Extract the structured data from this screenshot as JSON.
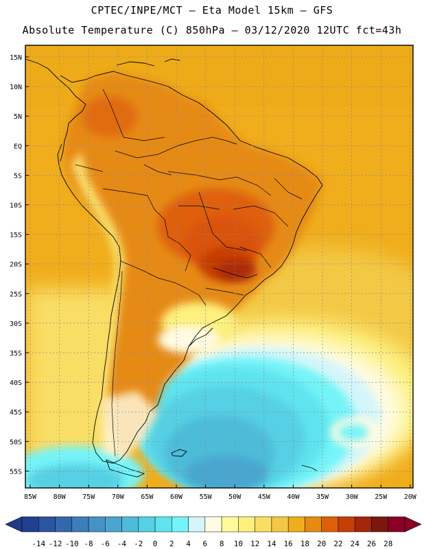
{
  "header": {
    "line1": "CPTEC/INPE/MCT –  Eta Model 15km – GFS",
    "line2": "Absolute Temperature (C) 850hPa – 03/12/2020 12UTC fct=43h"
  },
  "map": {
    "lat_labels": [
      "15N",
      "10N",
      "5N",
      "EQ",
      "5S",
      "10S",
      "15S",
      "20S",
      "25S",
      "30S",
      "35S",
      "40S",
      "45S",
      "50S",
      "55S"
    ],
    "lon_labels": [
      "85W",
      "80W",
      "75W",
      "70W",
      "65W",
      "60W",
      "55W",
      "50W",
      "45W",
      "40W",
      "35W",
      "30W",
      "25W",
      "20W"
    ],
    "ocean_color": "#f0a800",
    "land_color": "#e08c16"
  },
  "colorbar": {
    "labels": [
      "-14",
      "-12",
      "-10",
      "-8",
      "-6",
      "-4",
      "-2",
      "0",
      "2",
      "4",
      "6",
      "8",
      "10",
      "12",
      "14",
      "16",
      "18",
      "20",
      "22",
      "24",
      "26",
      "28"
    ],
    "colors": [
      "#213f8f",
      "#2a55a0",
      "#3468ae",
      "#3d7dbc",
      "#4691c6",
      "#4aa6cf",
      "#4ebcd9",
      "#56d0e4",
      "#5fe4ef",
      "#74f4f8",
      "#d4f6fa",
      "#fffbe3",
      "#fffb9c",
      "#fdf07e",
      "#f9de65",
      "#f3c845",
      "#f0ad1c",
      "#e68a12",
      "#df5f08",
      "#c53e06",
      "#a3260a",
      "#7a180f",
      "#8c0027"
    ],
    "left_cap": "#203a8a",
    "right_cap": "#8c0027"
  }
}
